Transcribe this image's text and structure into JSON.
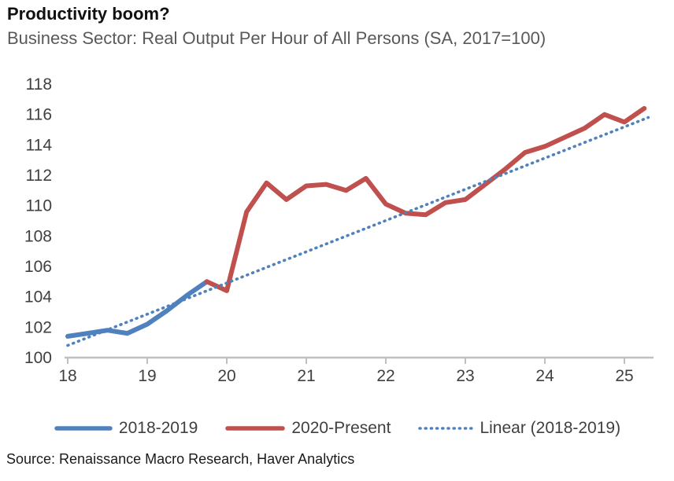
{
  "header": {
    "title": "Productivity boom?",
    "subtitle": "Business Sector: Real Output Per Hour of All Persons (SA, 2017=100)"
  },
  "source": "Source: Renaissance Macro Research, Haver Analytics",
  "colors": {
    "series_blue": "#4f81bd",
    "series_red": "#c0504d",
    "axis_line": "#bfbfbf",
    "tick_text": "#404040",
    "subtitle_text": "#595959"
  },
  "legend": {
    "items": [
      {
        "label": "2018-2019",
        "swatch": "solid",
        "color": "#4f81bd"
      },
      {
        "label": "2020-Present",
        "swatch": "solid",
        "color": "#c0504d"
      },
      {
        "label": "Linear (2018-2019)",
        "swatch": "dotted",
        "color": "#4f81bd"
      }
    ]
  },
  "chart_data": {
    "type": "line",
    "title": "Productivity boom?",
    "subtitle": "Business Sector: Real Output Per Hour of All Persons (SA, 2017=100)",
    "xlabel": "",
    "ylabel": "",
    "xlim": [
      17.95,
      25.4
    ],
    "ylim": [
      100,
      118
    ],
    "x_ticks": [
      18,
      19,
      20,
      21,
      22,
      23,
      24,
      25
    ],
    "y_ticks": [
      100,
      102,
      104,
      106,
      108,
      110,
      112,
      114,
      116,
      118
    ],
    "grid": false,
    "legend_position": "bottom",
    "series": [
      {
        "name": "2018-2019",
        "color": "#4f81bd",
        "line_style": "solid",
        "x": [
          18.0,
          18.25,
          18.5,
          18.75,
          19.0,
          19.25,
          19.5,
          19.75
        ],
        "values": [
          101.4,
          101.6,
          101.8,
          101.6,
          102.2,
          103.1,
          104.1,
          105.0
        ]
      },
      {
        "name": "2020-Present",
        "color": "#c0504d",
        "line_style": "solid",
        "x": [
          19.75,
          20.0,
          20.25,
          20.5,
          20.75,
          21.0,
          21.25,
          21.5,
          21.75,
          22.0,
          22.25,
          22.5,
          22.75,
          23.0,
          23.25,
          23.5,
          23.75,
          24.0,
          24.25,
          24.5,
          24.75,
          25.0,
          25.25
        ],
        "values": [
          105.0,
          104.4,
          109.6,
          111.5,
          110.4,
          111.3,
          111.4,
          111.0,
          111.8,
          110.1,
          109.5,
          109.4,
          110.2,
          110.4,
          111.4,
          112.4,
          113.5,
          113.9,
          114.5,
          115.1,
          116.0,
          115.5,
          116.4
        ]
      },
      {
        "name": "Linear (2018-2019)",
        "color": "#4f81bd",
        "line_style": "dotted",
        "x": [
          18.0,
          25.3
        ],
        "values": [
          100.8,
          115.8
        ]
      }
    ]
  }
}
